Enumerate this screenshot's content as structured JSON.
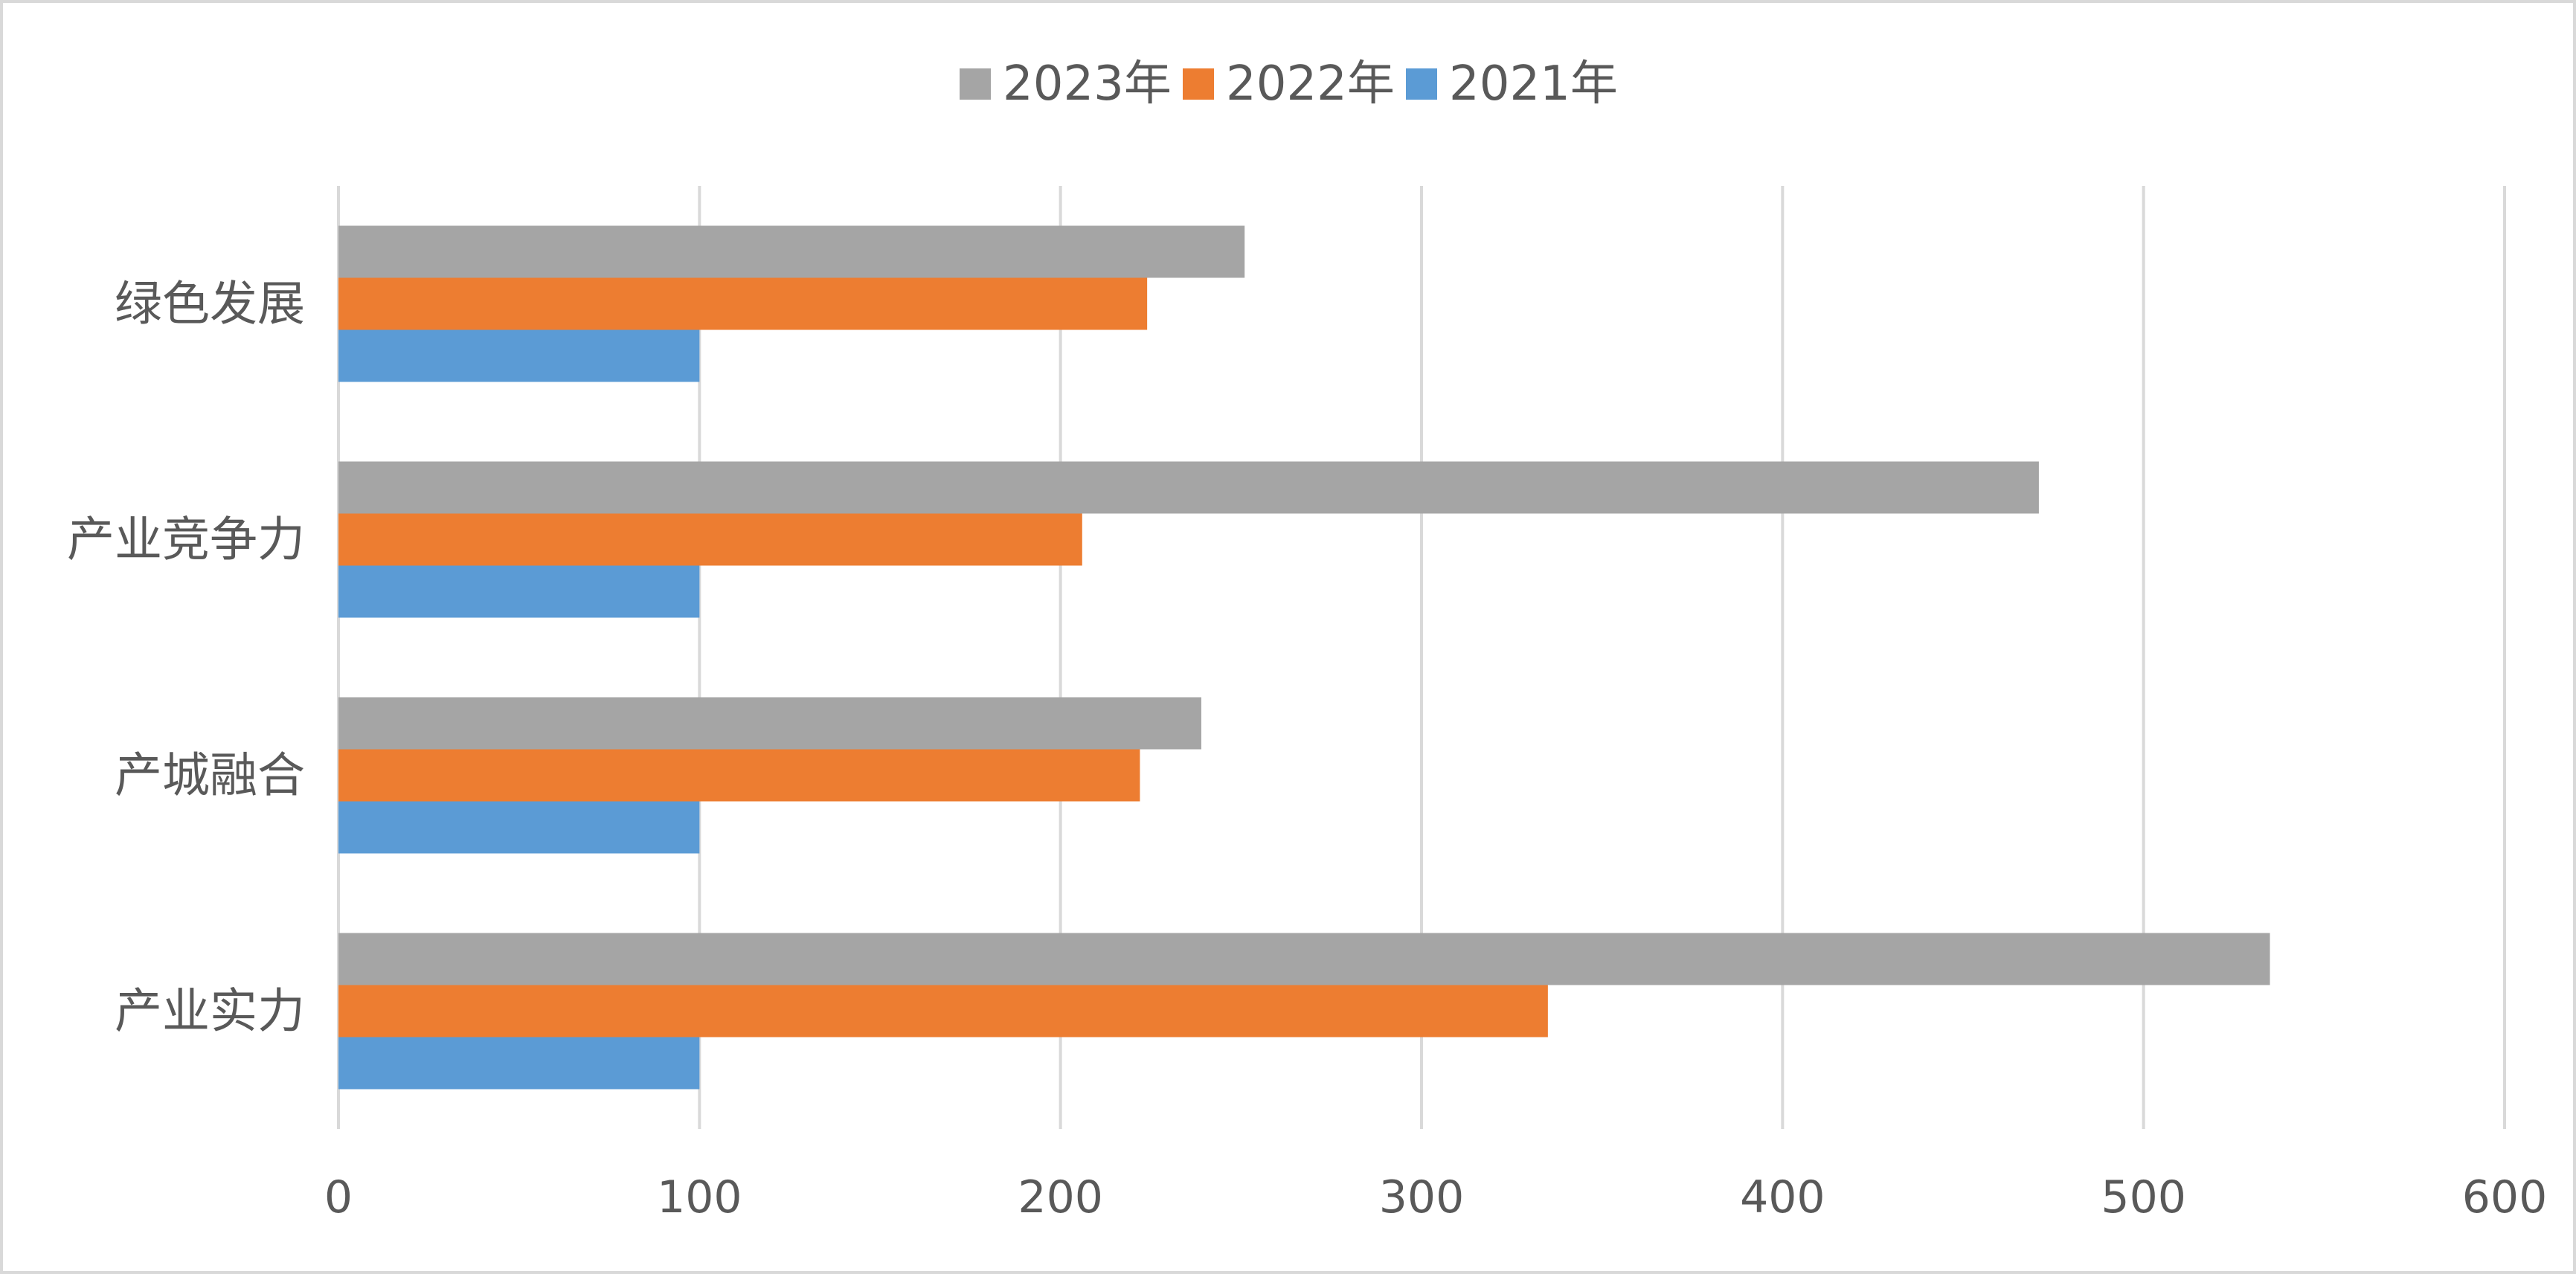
{
  "chart_data": {
    "type": "bar",
    "orientation": "horizontal",
    "categories": [
      "产业实力",
      "产城融合",
      "产业竞争力",
      "绿色发展"
    ],
    "series": [
      {
        "name": "2021年",
        "color": "#5b9bd5",
        "values": [
          100,
          100,
          100,
          100
        ]
      },
      {
        "name": "2022年",
        "color": "#ed7d31",
        "values": [
          335,
          222,
          206,
          224
        ]
      },
      {
        "name": "2023年",
        "color": "#a5a5a5",
        "values": [
          535,
          239,
          471,
          251
        ]
      }
    ],
    "legend_order": [
      "2023年",
      "2022年",
      "2021年"
    ],
    "xlim": [
      0,
      600
    ],
    "xticks": [
      0,
      100,
      200,
      300,
      400,
      500,
      600
    ],
    "grid": true,
    "legend_position": "top"
  }
}
